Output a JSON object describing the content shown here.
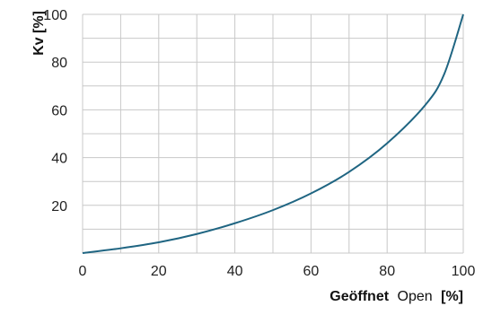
{
  "chart_data": {
    "type": "line",
    "ylabel": "Kv [%]",
    "xlabel_parts": {
      "de": "Geöffnet",
      "en": "Open",
      "unit": "[%]"
    },
    "xlim": [
      0,
      100
    ],
    "ylim": [
      0,
      100
    ],
    "x_ticks": [
      0,
      20,
      40,
      60,
      80,
      100
    ],
    "x_tick_labels": [
      "0",
      "20",
      "40",
      "60",
      "80",
      "100"
    ],
    "y_ticks": [
      20,
      40,
      60,
      80,
      100
    ],
    "y_tick_labels": [
      "20",
      "40",
      "60",
      "80",
      "100"
    ],
    "grid": true,
    "grid_x_step": 10,
    "grid_y_step": 10,
    "line_color": "#1f6582",
    "grid_color": "#c8c8c8",
    "series": [
      {
        "x": [
          0,
          10,
          20,
          30,
          40,
          50,
          60,
          70,
          80,
          90,
          95,
          100
        ],
        "y": [
          0,
          2,
          4.5,
          8,
          12.5,
          18,
          25,
          34,
          46,
          62,
          75,
          100
        ]
      }
    ]
  }
}
